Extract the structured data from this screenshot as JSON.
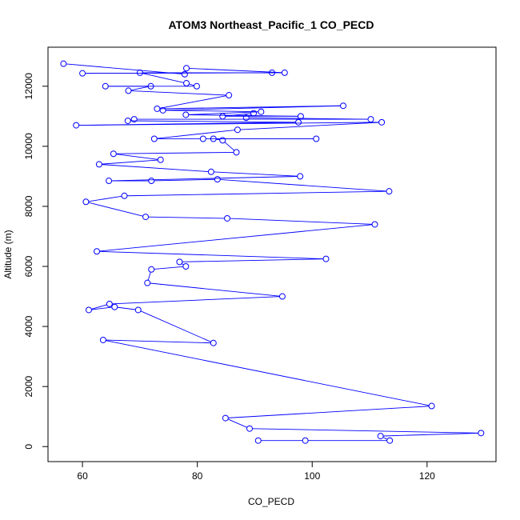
{
  "chart_data": {
    "type": "line",
    "title": "ATOM3 Northeast_Pacific_1 CO_PECD",
    "xlabel": "CO_PECD",
    "ylabel": "Altitude (m)",
    "xlim": [
      54,
      132
    ],
    "ylim": [
      -500,
      13300
    ],
    "x_ticks": [
      60,
      80,
      100,
      120
    ],
    "y_ticks": [
      0,
      2000,
      4000,
      6000,
      8000,
      10000,
      12000
    ],
    "series_color": "#0000ff",
    "marker": "open-circle",
    "grid": false,
    "points": [
      [
        56.7,
        12750
      ],
      [
        77.8,
        12400
      ],
      [
        78.1,
        12600
      ],
      [
        95.2,
        12450
      ],
      [
        60.0,
        12430
      ],
      [
        93.0,
        12450
      ],
      [
        70.0,
        12450
      ],
      [
        78.1,
        12100
      ],
      [
        79.9,
        12000
      ],
      [
        64.0,
        12000
      ],
      [
        71.9,
        12000
      ],
      [
        68.0,
        11850
      ],
      [
        85.5,
        11700
      ],
      [
        73.0,
        11250
      ],
      [
        105.4,
        11350
      ],
      [
        74.0,
        11200
      ],
      [
        91.1,
        11150
      ],
      [
        78.0,
        11050
      ],
      [
        98.0,
        11000
      ],
      [
        84.4,
        11000
      ],
      [
        89.8,
        11100
      ],
      [
        88.5,
        10950
      ],
      [
        110.2,
        10900
      ],
      [
        69.0,
        10900
      ],
      [
        67.9,
        10850
      ],
      [
        97.6,
        10800
      ],
      [
        58.9,
        10700
      ],
      [
        112.1,
        10800
      ],
      [
        87.0,
        10550
      ],
      [
        72.5,
        10250
      ],
      [
        81.0,
        10250
      ],
      [
        100.7,
        10250
      ],
      [
        82.8,
        10250
      ],
      [
        84.4,
        10200
      ],
      [
        86.8,
        9800
      ],
      [
        65.4,
        9750
      ],
      [
        73.6,
        9550
      ],
      [
        62.9,
        9400
      ],
      [
        82.4,
        9150
      ],
      [
        97.9,
        9000
      ],
      [
        64.6,
        8850
      ],
      [
        72.0,
        8850
      ],
      [
        83.5,
        8900
      ],
      [
        113.4,
        8500
      ],
      [
        67.3,
        8350
      ],
      [
        60.6,
        8150
      ],
      [
        71.0,
        7650
      ],
      [
        85.2,
        7600
      ],
      [
        110.9,
        7400
      ],
      [
        62.5,
        6500
      ],
      [
        102.4,
        6250
      ],
      [
        76.9,
        6150
      ],
      [
        78.0,
        6000
      ],
      [
        72.0,
        5900
      ],
      [
        71.3,
        5450
      ],
      [
        94.8,
        5000
      ],
      [
        64.7,
        4750
      ],
      [
        61.1,
        4550
      ],
      [
        65.6,
        4650
      ],
      [
        69.7,
        4550
      ],
      [
        82.8,
        3450
      ],
      [
        63.6,
        3550
      ],
      [
        120.8,
        1350
      ],
      [
        84.9,
        950
      ],
      [
        89.1,
        600
      ],
      [
        129.4,
        450
      ],
      [
        111.9,
        350
      ],
      [
        113.5,
        200
      ],
      [
        98.8,
        200
      ],
      [
        90.6,
        200
      ],
      [
        69.0,
        10900
      ],
      [
        78.0,
        6000
      ],
      [
        82.8,
        10250
      ],
      [
        82.8,
        3450
      ],
      [
        90.6,
        200
      ]
    ],
    "point_order": [
      0,
      1,
      2,
      3,
      4,
      5,
      6,
      7,
      8,
      9,
      10,
      11,
      12,
      13,
      14,
      15,
      16,
      17,
      18,
      19,
      20,
      21,
      22,
      23,
      24,
      25,
      26,
      27,
      28,
      29,
      30,
      31,
      32,
      33,
      34,
      35,
      36,
      37,
      38,
      39,
      40,
      41,
      42,
      43,
      44,
      45,
      46,
      47,
      48,
      49,
      50,
      51,
      52,
      53,
      54,
      55,
      56,
      57,
      58,
      59,
      60,
      61,
      62,
      63,
      64,
      65,
      66,
      67,
      68,
      69
    ]
  }
}
